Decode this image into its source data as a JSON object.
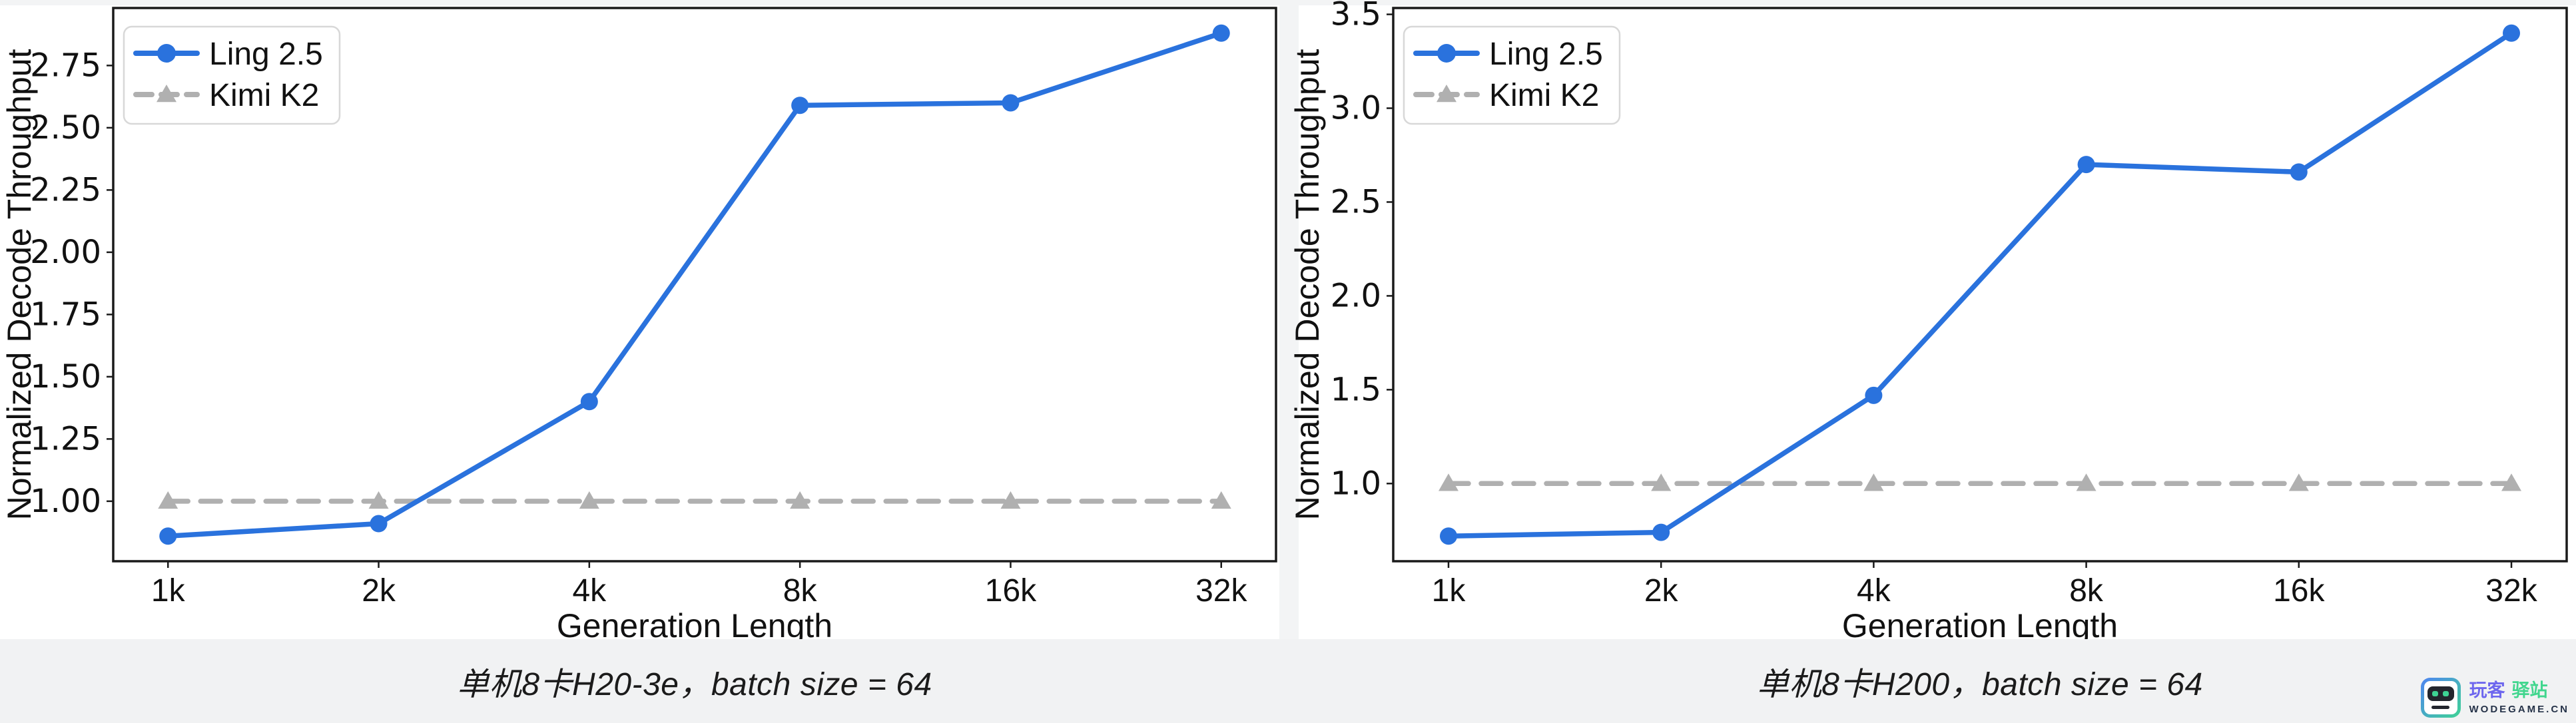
{
  "captions": {
    "left": "单机8卡H20-3e，batch size = 64",
    "right": "单机8卡H200，batch size = 64"
  },
  "colors": {
    "ling_blue": "#2a72dd",
    "kimi_gray": "#b0b0b0",
    "axis_black": "#1a1a1a",
    "legend_border": "#d8d8d8",
    "caption_band": "#f1f2f3"
  },
  "chart_data": [
    {
      "type": "line",
      "caption": "单机8卡H20-3e，batch size = 64",
      "xlabel": "Generation Length",
      "ylabel": "Normalized Decode Throughput",
      "categories": [
        "1k",
        "2k",
        "4k",
        "8k",
        "16k",
        "32k"
      ],
      "ylim": [
        0.759,
        2.981
      ],
      "ytick_values": [
        1.0,
        1.25,
        1.5,
        1.75,
        2.0,
        2.25,
        2.5,
        2.75
      ],
      "ytick_labels": [
        "1.00",
        "1.25",
        "1.50",
        "1.75",
        "2.00",
        "2.25",
        "2.50",
        "2.75"
      ],
      "grid": false,
      "legend_position": "upper-left",
      "series": [
        {
          "name": "Ling 2.5",
          "color": "#2a72dd",
          "marker": "circle",
          "line": "solid",
          "values": [
            0.86,
            0.91,
            1.4,
            2.59,
            2.6,
            2.88
          ]
        },
        {
          "name": "Kimi K2",
          "color": "#b0b0b0",
          "marker": "triangle",
          "line": "dashed",
          "values": [
            1.0,
            1.0,
            1.0,
            1.0,
            1.0,
            1.0
          ]
        }
      ]
    },
    {
      "type": "line",
      "caption": "单机8卡H200，batch size = 64",
      "xlabel": "Generation Length",
      "ylabel": "Normalized Decode Throughput",
      "categories": [
        "1k",
        "2k",
        "4k",
        "8k",
        "16k",
        "32k"
      ],
      "ylim": [
        0.586,
        3.534
      ],
      "ytick_values": [
        1.0,
        1.5,
        2.0,
        2.5,
        3.0,
        3.5
      ],
      "ytick_labels": [
        "1.0",
        "1.5",
        "2.0",
        "2.5",
        "3.0",
        "3.5"
      ],
      "grid": false,
      "legend_position": "upper-left",
      "series": [
        {
          "name": "Ling 2.5",
          "color": "#2a72dd",
          "marker": "circle",
          "line": "solid",
          "values": [
            0.72,
            0.74,
            1.47,
            2.7,
            2.66,
            3.4
          ]
        },
        {
          "name": "Kimi K2",
          "color": "#b0b0b0",
          "marker": "triangle",
          "line": "dashed",
          "values": [
            1.0,
            1.0,
            1.0,
            1.0,
            1.0,
            1.0
          ]
        }
      ]
    }
  ],
  "watermark": {
    "name_part1": "玩客",
    "name_part2": "驿站",
    "domain": "WODEGAME.CN",
    "name1_color": "#6d66ee",
    "name2_color": "#41d68e",
    "domain_color": "#253248"
  }
}
